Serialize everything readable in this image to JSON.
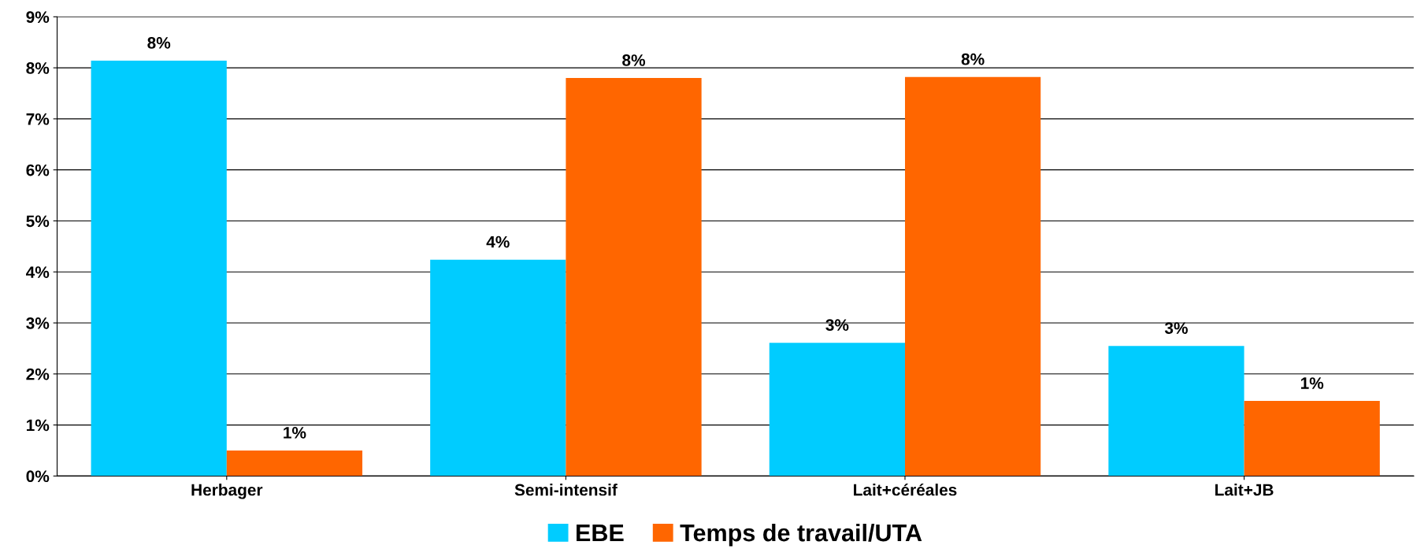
{
  "chart_data": {
    "type": "bar",
    "categories": [
      "Herbager",
      "Semi-intensif",
      "Lait+céréales",
      "Lait+JB"
    ],
    "series": [
      {
        "name": "EBE",
        "color": "#00ccff",
        "values": [
          8.14,
          4.24,
          2.61,
          2.55
        ],
        "value_labels": [
          "8%",
          "4%",
          "3%",
          "3%"
        ]
      },
      {
        "name": "Temps de travail/UTA",
        "color": "#ff6600",
        "values": [
          0.5,
          7.8,
          7.82,
          1.47
        ],
        "value_labels": [
          "1%",
          "8%",
          "8%",
          "1%"
        ]
      }
    ],
    "ylim": [
      0,
      9
    ],
    "yticks": [
      {
        "value": 0,
        "label": "0%"
      },
      {
        "value": 1,
        "label": "1%"
      },
      {
        "value": 2,
        "label": "2%"
      },
      {
        "value": 3,
        "label": "3%"
      },
      {
        "value": 4,
        "label": "4%"
      },
      {
        "value": 5,
        "label": "5%"
      },
      {
        "value": 6,
        "label": "6%"
      },
      {
        "value": 7,
        "label": "7%"
      },
      {
        "value": 8,
        "label": "8%"
      },
      {
        "value": 9,
        "label": "9%"
      }
    ],
    "grid": "y",
    "legend": "bottom"
  }
}
